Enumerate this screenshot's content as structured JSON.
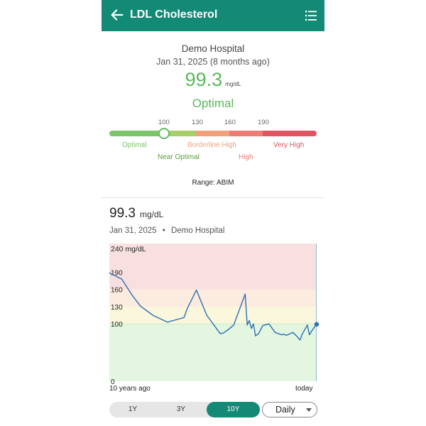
{
  "header": {
    "title": "LDL Cholesterol",
    "back_icon": "arrow-left-icon",
    "menu_icon": "list-icon"
  },
  "summary": {
    "hospital": "Demo Hospital",
    "date": "Jan 31, 2025 (8 months ago)",
    "value": "99.3",
    "unit": "mg/dL",
    "status": "Optimal"
  },
  "range_bar": {
    "ticks": [
      "100",
      "130",
      "160",
      "190"
    ],
    "labels": [
      "Optimal",
      "Near Optimal",
      "Borderline High",
      "High",
      "Very High"
    ],
    "colors": [
      "#7ac46a",
      "#a6cf6a",
      "#f2a07a",
      "#ee7c74",
      "#e05461"
    ],
    "current_value": 99.3,
    "range_source": "Range: ABIM"
  },
  "detail": {
    "value": "99.3",
    "unit": "mg/dL",
    "date": "Jan 31, 2025",
    "separator": "•",
    "hospital": "Demo Hospital"
  },
  "chart_data": {
    "type": "line",
    "y_top_label": "240 mg/dL",
    "ylim": [
      0,
      240
    ],
    "y_ticks": [
      0,
      100,
      130,
      160,
      190
    ],
    "bands": [
      {
        "from": 0,
        "to": 100,
        "color": "#e3f6e0"
      },
      {
        "from": 100,
        "to": 130,
        "color": "#fbf7dc"
      },
      {
        "from": 130,
        "to": 160,
        "color": "#fcebdf"
      },
      {
        "from": 160,
        "to": 240,
        "color": "#f9e0e0"
      }
    ],
    "xlim": [
      0,
      10
    ],
    "x_labels": [
      "10 years ago",
      "today"
    ],
    "series": [
      {
        "color": "#2a6fb5",
        "x": [
          0,
          0.6,
          1.1,
          1.5,
          2.1,
          2.8,
          3.6,
          3.75,
          4.2,
          4.7,
          5.35,
          5.5,
          5.7,
          6.0,
          6.55,
          6.65,
          6.75,
          6.85,
          6.95,
          7.05,
          7.2,
          7.4,
          7.7,
          8.0,
          8.3,
          8.4,
          8.55,
          8.85,
          9.0,
          9.2,
          9.3,
          9.55,
          9.65,
          9.8,
          10.0
        ],
        "y": [
          189,
          178,
          150,
          131,
          115,
          103,
          111,
          126,
          159,
          115,
          83,
          84,
          89,
          98,
          152,
          98,
          106,
          92,
          100,
          79,
          83,
          97,
          100,
          85,
          81,
          82,
          80,
          85,
          80,
          72,
          82,
          98,
          81,
          90,
          99.3
        ]
      }
    ]
  },
  "controls": {
    "periods": [
      "1Y",
      "3Y",
      "10Y"
    ],
    "active_period": "10Y",
    "granularity": "Daily"
  }
}
